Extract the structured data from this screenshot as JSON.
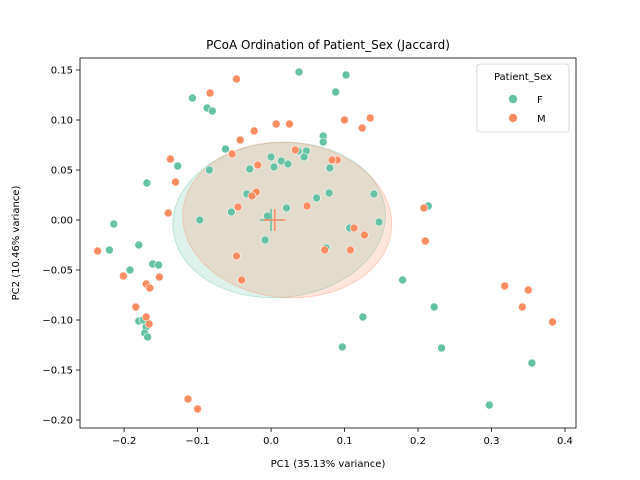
{
  "chart_data": {
    "type": "scatter",
    "title": "PCoA Ordination of Patient_Sex (Jaccard)",
    "xlabel": "PC1 (35.13% variance)",
    "ylabel": "PC2 (10.46% variance)",
    "xlim": [
      -0.26,
      0.415
    ],
    "ylim": [
      -0.208,
      0.162
    ],
    "xticks": [
      -0.2,
      -0.1,
      0.0,
      0.1,
      0.2,
      0.3,
      0.4
    ],
    "xtick_labels": [
      "−0.2",
      "−0.1",
      "0.0",
      "0.1",
      "0.2",
      "0.3",
      "0.4"
    ],
    "yticks": [
      -0.2,
      -0.15,
      -0.1,
      -0.05,
      0.0,
      0.05,
      0.1,
      0.15
    ],
    "ytick_labels": [
      "−0.20",
      "−0.15",
      "−0.10",
      "−0.05",
      "0.00",
      "0.05",
      "0.10",
      "0.15"
    ],
    "grid": false,
    "legend": {
      "title": "Patient_Sex",
      "position": "top-right"
    },
    "ellipses": [
      {
        "series": "F",
        "center": [
          0.011,
          0.0
        ],
        "width": 0.29,
        "height": 0.155,
        "angle_deg": 5
      },
      {
        "series": "M",
        "center": [
          0.022,
          0.0
        ],
        "width": 0.285,
        "height": 0.155,
        "angle_deg": -5
      }
    ],
    "series": [
      {
        "name": "F",
        "color": "#66c2a5",
        "centroid": [
          0.0,
          0.0
        ],
        "points": [
          [
            0.038,
            0.148
          ],
          [
            0.102,
            0.145
          ],
          [
            0.088,
            0.128
          ],
          [
            -0.107,
            0.122
          ],
          [
            -0.087,
            0.112
          ],
          [
            -0.08,
            0.109
          ],
          [
            0.071,
            0.084
          ],
          [
            -0.062,
            0.071
          ],
          [
            0.071,
            0.078
          ],
          [
            0.037,
            0.069
          ],
          [
            0.048,
            0.069
          ],
          [
            0.0,
            0.063
          ],
          [
            0.014,
            0.059
          ],
          [
            0.023,
            0.056
          ],
          [
            0.045,
            0.063
          ],
          [
            -0.127,
            0.054
          ],
          [
            -0.084,
            0.05
          ],
          [
            -0.029,
            0.051
          ],
          [
            0.004,
            0.053
          ],
          [
            0.08,
            0.052
          ],
          [
            -0.169,
            0.037
          ],
          [
            0.079,
            0.027
          ],
          [
            0.14,
            0.026
          ],
          [
            0.062,
            0.022
          ],
          [
            -0.033,
            0.026
          ],
          [
            0.021,
            0.012
          ],
          [
            -0.054,
            0.008
          ],
          [
            -0.005,
            0.004
          ],
          [
            -0.097,
            0.0
          ],
          [
            0.147,
            -0.002
          ],
          [
            -0.214,
            -0.004
          ],
          [
            0.214,
            0.014
          ],
          [
            0.107,
            -0.008
          ],
          [
            -0.008,
            -0.02
          ],
          [
            -0.18,
            -0.025
          ],
          [
            -0.22,
            -0.03
          ],
          [
            0.075,
            -0.028
          ],
          [
            -0.161,
            -0.044
          ],
          [
            -0.153,
            -0.045
          ],
          [
            -0.192,
            -0.05
          ],
          [
            0.179,
            -0.06
          ],
          [
            0.222,
            -0.087
          ],
          [
            0.125,
            -0.097
          ],
          [
            -0.18,
            -0.101
          ],
          [
            -0.174,
            -0.1
          ],
          [
            -0.17,
            -0.107
          ],
          [
            -0.172,
            -0.113
          ],
          [
            -0.168,
            -0.117
          ],
          [
            0.097,
            -0.127
          ],
          [
            0.232,
            -0.128
          ],
          [
            0.355,
            -0.143
          ],
          [
            0.297,
            -0.185
          ]
        ]
      },
      {
        "name": "M",
        "color": "#fc8d62",
        "centroid": [
          0.005,
          0.0
        ],
        "points": [
          [
            -0.047,
            0.141
          ],
          [
            -0.083,
            0.127
          ],
          [
            0.135,
            0.102
          ],
          [
            0.1,
            0.1
          ],
          [
            0.025,
            0.096
          ],
          [
            0.007,
            0.096
          ],
          [
            -0.023,
            0.089
          ],
          [
            0.124,
            0.092
          ],
          [
            -0.042,
            0.08
          ],
          [
            -0.137,
            0.061
          ],
          [
            0.09,
            0.06
          ],
          [
            0.083,
            0.06
          ],
          [
            -0.053,
            0.066
          ],
          [
            0.033,
            0.07
          ],
          [
            -0.13,
            0.038
          ],
          [
            -0.018,
            0.055
          ],
          [
            -0.02,
            0.028
          ],
          [
            -0.026,
            0.024
          ],
          [
            -0.045,
            0.013
          ],
          [
            0.049,
            0.014
          ],
          [
            -0.14,
            0.007
          ],
          [
            0.208,
            0.012
          ],
          [
            0.113,
            -0.008
          ],
          [
            0.127,
            -0.015
          ],
          [
            0.21,
            -0.021
          ],
          [
            -0.236,
            -0.031
          ],
          [
            -0.047,
            -0.036
          ],
          [
            0.108,
            -0.03
          ],
          [
            0.073,
            -0.03
          ],
          [
            -0.201,
            -0.056
          ],
          [
            -0.152,
            -0.057
          ],
          [
            -0.17,
            -0.064
          ],
          [
            -0.165,
            -0.068
          ],
          [
            -0.04,
            -0.06
          ],
          [
            0.318,
            -0.066
          ],
          [
            0.35,
            -0.07
          ],
          [
            0.342,
            -0.087
          ],
          [
            -0.184,
            -0.087
          ],
          [
            -0.17,
            -0.097
          ],
          [
            -0.166,
            -0.104
          ],
          [
            0.383,
            -0.102
          ],
          [
            -0.113,
            -0.179
          ],
          [
            -0.1,
            -0.189
          ]
        ]
      }
    ]
  }
}
